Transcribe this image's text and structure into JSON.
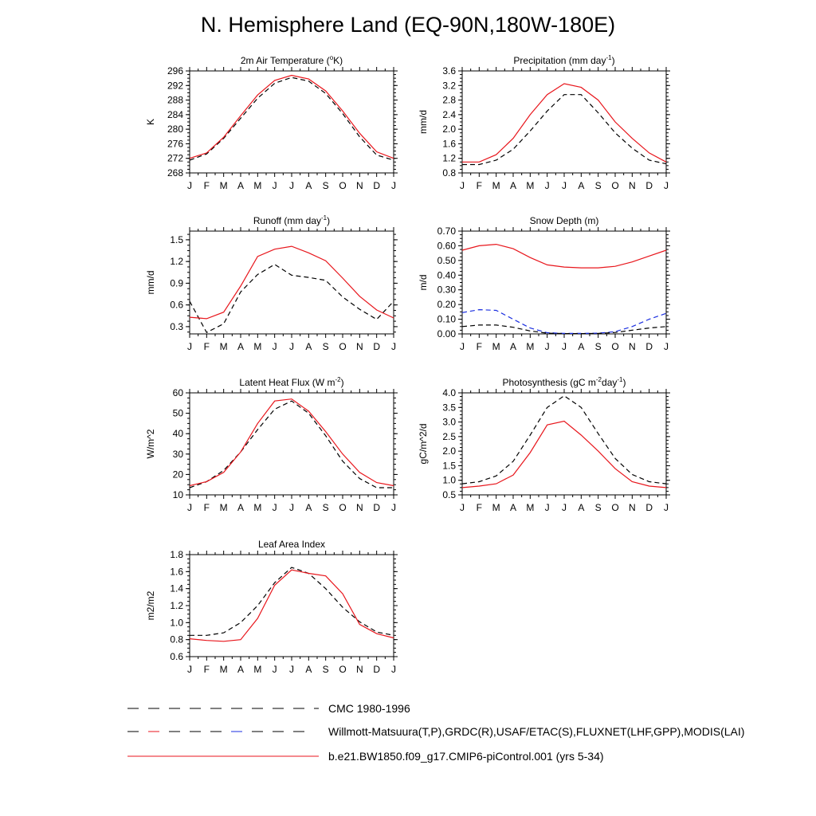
{
  "page": {
    "title": "N. Hemisphere Land (EQ-90N,180W-180E)"
  },
  "legend": [
    {
      "label": "CMC 1980-1996",
      "style": "dash-black"
    },
    {
      "label": "Willmott-Matsuura(T,P),GRDC(R),USAF/ETAC(S),FLUXNET(LHF,GPP),MODIS(LAI)",
      "style": "dash-mixed"
    },
    {
      "label": "b.e21.BW1850.f09_g17.CMIP6-piControl.001 (yrs 5-34)",
      "style": "solid-red"
    }
  ],
  "colors": {
    "model": "#e8161c",
    "obs": "#000000",
    "cmc": "#1a2ee0"
  },
  "chart_data": [
    {
      "type": "line",
      "title": "2m Air Temperature (°K)",
      "title_parts": [
        "2m Air Temperature (",
        "o",
        "K)"
      ],
      "ylabel": "K",
      "x": [
        "J",
        "F",
        "M",
        "A",
        "M",
        "J",
        "J",
        "A",
        "S",
        "O",
        "N",
        "D",
        "J"
      ],
      "ylim": [
        268,
        296
      ],
      "yticks": [
        268,
        272,
        276,
        280,
        284,
        288,
        292,
        296
      ],
      "ytick_labels": [
        "268",
        "272",
        "276",
        "280",
        "284",
        "288",
        "292",
        "296"
      ],
      "series": [
        {
          "role": "obs",
          "color": "#000000",
          "dash": true,
          "values": [
            271.5,
            273.2,
            277.5,
            283.0,
            288.5,
            292.6,
            294.2,
            293.2,
            289.8,
            284.3,
            277.9,
            272.9,
            271.5
          ]
        },
        {
          "role": "model",
          "color": "#e8161c",
          "dash": false,
          "values": [
            272.0,
            273.5,
            277.8,
            283.7,
            289.4,
            293.4,
            294.8,
            293.8,
            290.5,
            285.0,
            278.9,
            273.8,
            272.0
          ]
        }
      ]
    },
    {
      "type": "line",
      "title": "Precipitation (mm day-1)",
      "title_parts": [
        "Precipitation (mm day",
        "-1",
        ")"
      ],
      "ylabel": "mm/d",
      "x": [
        "J",
        "F",
        "M",
        "A",
        "M",
        "J",
        "J",
        "A",
        "S",
        "O",
        "N",
        "D",
        "J"
      ],
      "ylim": [
        0.8,
        3.6
      ],
      "yticks": [
        0.8,
        1.2,
        1.6,
        2.0,
        2.4,
        2.8,
        3.2,
        3.6
      ],
      "ytick_labels": [
        "0.8",
        "1.2",
        "1.6",
        "2.0",
        "2.4",
        "2.8",
        "3.2",
        "3.6"
      ],
      "series": [
        {
          "role": "obs",
          "color": "#000000",
          "dash": true,
          "values": [
            1.03,
            1.03,
            1.15,
            1.45,
            1.95,
            2.5,
            2.95,
            2.95,
            2.45,
            1.9,
            1.48,
            1.15,
            1.05
          ]
        },
        {
          "role": "model",
          "color": "#e8161c",
          "dash": false,
          "values": [
            1.1,
            1.1,
            1.3,
            1.75,
            2.4,
            2.95,
            3.25,
            3.15,
            2.8,
            2.2,
            1.75,
            1.35,
            1.1
          ]
        }
      ]
    },
    {
      "type": "line",
      "title": "Runoff (mm day-1)",
      "title_parts": [
        "Runoff (mm day",
        "-1",
        ")"
      ],
      "ylabel": "mm/d",
      "x": [
        "J",
        "F",
        "M",
        "A",
        "M",
        "J",
        "J",
        "A",
        "S",
        "O",
        "N",
        "D",
        "J"
      ],
      "ylim": [
        0.2,
        1.62
      ],
      "yticks": [
        0.3,
        0.6,
        0.9,
        1.2,
        1.5
      ],
      "ytick_labels": [
        "0.3",
        "0.6",
        "0.9",
        "1.2",
        "1.5"
      ],
      "series": [
        {
          "role": "obs",
          "color": "#000000",
          "dash": true,
          "values": [
            0.65,
            0.22,
            0.34,
            0.78,
            1.02,
            1.16,
            1.01,
            0.98,
            0.94,
            0.71,
            0.54,
            0.4,
            0.65
          ]
        },
        {
          "role": "model",
          "color": "#e8161c",
          "dash": false,
          "values": [
            0.43,
            0.41,
            0.5,
            0.86,
            1.27,
            1.37,
            1.41,
            1.32,
            1.21,
            0.97,
            0.72,
            0.53,
            0.42
          ]
        }
      ]
    },
    {
      "type": "line",
      "title": "Snow Depth (m)",
      "title_parts": [
        "Snow Depth (m)"
      ],
      "ylabel": "m/d",
      "x": [
        "J",
        "F",
        "M",
        "A",
        "M",
        "J",
        "J",
        "A",
        "S",
        "O",
        "N",
        "D",
        "J"
      ],
      "ylim": [
        0.0,
        0.7
      ],
      "yticks": [
        0.0,
        0.1,
        0.2,
        0.3,
        0.4,
        0.5,
        0.6,
        0.7
      ],
      "ytick_labels": [
        "0.00",
        "0.10",
        "0.20",
        "0.30",
        "0.40",
        "0.50",
        "0.60",
        "0.70"
      ],
      "series": [
        {
          "role": "cmc",
          "color": "#1a2ee0",
          "dash": true,
          "values": [
            0.145,
            0.165,
            0.16,
            0.1,
            0.04,
            0.008,
            0.003,
            0.003,
            0.005,
            0.015,
            0.05,
            0.1,
            0.14
          ]
        },
        {
          "role": "obs",
          "color": "#000000",
          "dash": true,
          "values": [
            0.05,
            0.06,
            0.06,
            0.045,
            0.02,
            0.005,
            0.002,
            0.002,
            0.003,
            0.01,
            0.025,
            0.04,
            0.05
          ]
        },
        {
          "role": "model",
          "color": "#e8161c",
          "dash": false,
          "values": [
            0.57,
            0.6,
            0.61,
            0.58,
            0.52,
            0.47,
            0.455,
            0.45,
            0.45,
            0.46,
            0.49,
            0.53,
            0.57
          ]
        }
      ]
    },
    {
      "type": "line",
      "title": "Latent Heat Flux (W m-2)",
      "title_parts": [
        "Latent Heat Flux (W m",
        "-2",
        ")"
      ],
      "ylabel": "W/m^2",
      "x": [
        "J",
        "F",
        "M",
        "A",
        "M",
        "J",
        "J",
        "A",
        "S",
        "O",
        "N",
        "D",
        "J"
      ],
      "ylim": [
        10,
        60
      ],
      "yticks": [
        10,
        20,
        30,
        40,
        50,
        60
      ],
      "ytick_labels": [
        "10",
        "20",
        "30",
        "40",
        "50",
        "60"
      ],
      "series": [
        {
          "role": "obs",
          "color": "#000000",
          "dash": true,
          "values": [
            13.5,
            16.5,
            22,
            31,
            42,
            52,
            56,
            50,
            39,
            26.5,
            18,
            13.5,
            13.5
          ]
        },
        {
          "role": "model",
          "color": "#e8161c",
          "dash": false,
          "values": [
            14.5,
            16.5,
            21,
            31,
            45,
            56,
            57,
            51,
            41,
            30,
            21,
            16,
            14.5
          ]
        }
      ]
    },
    {
      "type": "line",
      "title": "Photosynthesis (gC m-2day-1)",
      "title_parts": [
        "Photosynthesis (gC m",
        "-2",
        "day",
        "-1",
        ")"
      ],
      "ylabel": "gC/m^2/d",
      "x": [
        "J",
        "F",
        "M",
        "A",
        "M",
        "J",
        "J",
        "A",
        "S",
        "O",
        "N",
        "D",
        "J"
      ],
      "ylim": [
        0.5,
        4.0
      ],
      "yticks": [
        0.5,
        1.0,
        1.5,
        2.0,
        2.5,
        3.0,
        3.5,
        4.0
      ],
      "ytick_labels": [
        "0.5",
        "1.0",
        "1.5",
        "2.0",
        "2.5",
        "3.0",
        "3.5",
        "4.0"
      ],
      "series": [
        {
          "role": "obs",
          "color": "#000000",
          "dash": true,
          "values": [
            0.88,
            0.95,
            1.15,
            1.65,
            2.55,
            3.5,
            3.9,
            3.5,
            2.6,
            1.75,
            1.2,
            0.95,
            0.88
          ]
        },
        {
          "role": "model",
          "color": "#e8161c",
          "dash": false,
          "values": [
            0.75,
            0.8,
            0.88,
            1.18,
            1.95,
            2.9,
            3.03,
            2.55,
            2.0,
            1.4,
            0.95,
            0.8,
            0.75
          ]
        }
      ]
    },
    {
      "type": "line",
      "title": "Leaf Area Index",
      "title_parts": [
        "Leaf Area Index"
      ],
      "ylabel": "m2/m2",
      "x": [
        "J",
        "F",
        "M",
        "A",
        "M",
        "J",
        "J",
        "A",
        "S",
        "O",
        "N",
        "D",
        "J"
      ],
      "ylim": [
        0.6,
        1.8
      ],
      "yticks": [
        0.6,
        0.8,
        1.0,
        1.2,
        1.4,
        1.6,
        1.8
      ],
      "ytick_labels": [
        "0.6",
        "0.8",
        "1.0",
        "1.2",
        "1.4",
        "1.6",
        "1.8"
      ],
      "series": [
        {
          "role": "obs",
          "color": "#000000",
          "dash": true,
          "values": [
            0.85,
            0.85,
            0.88,
            1.0,
            1.2,
            1.47,
            1.65,
            1.58,
            1.4,
            1.18,
            1.01,
            0.89,
            0.85
          ]
        },
        {
          "role": "model",
          "color": "#e8161c",
          "dash": false,
          "values": [
            0.81,
            0.79,
            0.78,
            0.8,
            1.05,
            1.44,
            1.62,
            1.58,
            1.55,
            1.34,
            0.98,
            0.87,
            0.82
          ]
        }
      ]
    }
  ]
}
